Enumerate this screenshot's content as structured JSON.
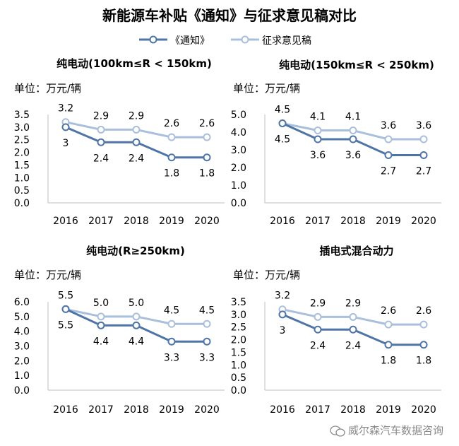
{
  "title": "新能源车补贴《通知》与征求意见稿对比",
  "legend": {
    "notice": "《通知》",
    "draft": "征求意见稿"
  },
  "colors": {
    "notice": "#4f74a6",
    "draft": "#a9bfdc",
    "axis": "#bfbfbf"
  },
  "watermark": "威尔森汽车数据咨询",
  "chart_data": [
    {
      "type": "line",
      "title": "纯电动(100km≤R < 150km)",
      "unit": "单位：万元/辆",
      "categories": [
        "2016",
        "2017",
        "2018",
        "2019",
        "2020"
      ],
      "ylim": [
        0,
        3.5
      ],
      "yticks": [
        "0.0",
        "0.5",
        "1.0",
        "1.5",
        "2.0",
        "2.5",
        "3.0",
        "3.5"
      ],
      "series": [
        {
          "name": "《通知》",
          "values": [
            3,
            2.4,
            2.4,
            1.8,
            1.8
          ],
          "labels": [
            "3",
            "2.4",
            "2.4",
            "1.8",
            "1.8"
          ]
        },
        {
          "name": "征求意见稿",
          "values": [
            3.2,
            2.9,
            2.9,
            2.6,
            2.6
          ],
          "labels": [
            "3.2",
            "2.9",
            "2.9",
            "2.6",
            "2.6"
          ]
        }
      ]
    },
    {
      "type": "line",
      "title": "纯电动(150km≤R < 250km)",
      "unit": "单位：万元/辆",
      "categories": [
        "2016",
        "2017",
        "2018",
        "2019",
        "2020"
      ],
      "ylim": [
        0,
        5
      ],
      "yticks": [
        "0.0",
        "1.0",
        "2.0",
        "3.0",
        "4.0",
        "5.0"
      ],
      "series": [
        {
          "name": "《通知》",
          "values": [
            4.5,
            3.6,
            3.6,
            2.7,
            2.7
          ],
          "labels": [
            "4.5",
            "3.6",
            "3.6",
            "2.7",
            "2.7"
          ]
        },
        {
          "name": "征求意见稿",
          "values": [
            4.5,
            4.1,
            4.1,
            3.6,
            3.6
          ],
          "labels": [
            "4.5",
            "4.1",
            "4.1",
            "3.6",
            "3.6"
          ]
        }
      ]
    },
    {
      "type": "line",
      "title": "纯电动(R≥250km)",
      "unit": "单位：万元/辆",
      "categories": [
        "2016",
        "2017",
        "2018",
        "2019",
        "2020"
      ],
      "ylim": [
        0,
        6
      ],
      "yticks": [
        "0.0",
        "1.0",
        "2.0",
        "3.0",
        "4.0",
        "5.0",
        "6.0"
      ],
      "series": [
        {
          "name": "《通知》",
          "values": [
            5.5,
            4.4,
            4.4,
            3.3,
            3.3
          ],
          "labels": [
            "5.5",
            "4.4",
            "4.4",
            "3.3",
            "3.3"
          ]
        },
        {
          "name": "征求意见稿",
          "values": [
            5.5,
            5.0,
            5.0,
            4.5,
            4.5
          ],
          "labels": [
            "5.5",
            "5.0",
            "5.0",
            "4.5",
            "4.5"
          ]
        }
      ]
    },
    {
      "type": "line",
      "title": "插电式混合动力",
      "unit": "单位：万元/辆",
      "categories": [
        "2016",
        "2017",
        "2018",
        "2019",
        "2020"
      ],
      "ylim": [
        0,
        3.5
      ],
      "yticks": [
        "0.0",
        "0.5",
        "1.0",
        "1.5",
        "2.0",
        "2.5",
        "3.0",
        "3.5"
      ],
      "series": [
        {
          "name": "《通知》",
          "values": [
            3,
            2.4,
            2.4,
            1.8,
            1.8
          ],
          "labels": [
            "3",
            "2.4",
            "2.4",
            "1.8",
            "1.8"
          ]
        },
        {
          "name": "征求意见稿",
          "values": [
            3.2,
            2.9,
            2.9,
            2.6,
            2.6
          ],
          "labels": [
            "3.2",
            "2.9",
            "2.9",
            "2.6",
            "2.6"
          ]
        }
      ]
    }
  ]
}
